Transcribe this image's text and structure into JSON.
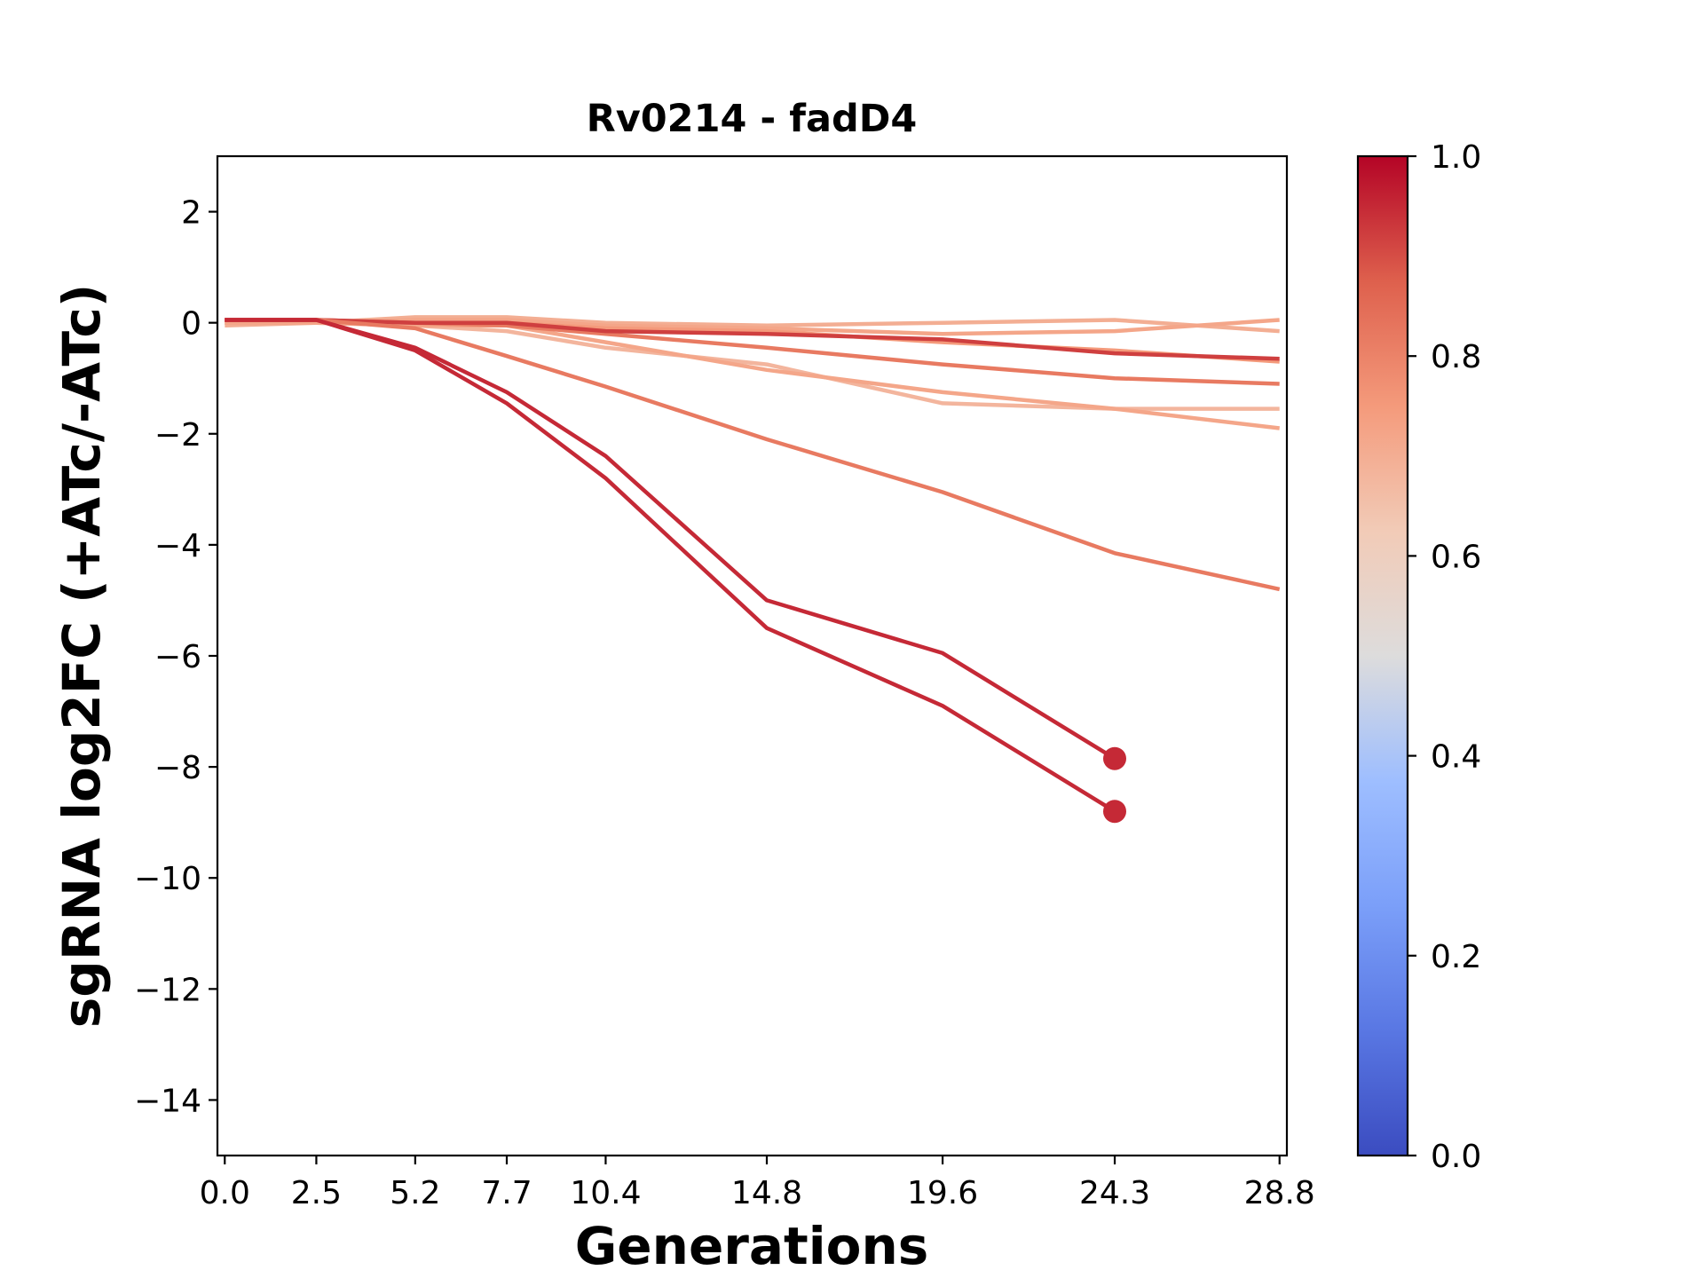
{
  "chart_data": {
    "type": "line",
    "title": "Rv0214 - fadD4",
    "xlabel": "Generations",
    "ylabel": "sgRNA log2FC (+ATc/-ATc)",
    "xlim": [
      -0.2,
      29.0
    ],
    "ylim": [
      -15,
      3
    ],
    "x_ticks": [
      0.0,
      2.5,
      5.2,
      7.7,
      10.4,
      14.8,
      19.6,
      24.3,
      28.8
    ],
    "x_tick_labels": [
      "0.0",
      "2.5",
      "5.2",
      "7.7",
      "10.4",
      "14.8",
      "19.6",
      "24.3",
      "28.8"
    ],
    "y_ticks": [
      2,
      0,
      -2,
      -4,
      -6,
      -8,
      -10,
      -12,
      -14
    ],
    "y_tick_labels": [
      "2",
      "0",
      "−2",
      "−4",
      "−6",
      "−8",
      "−10",
      "−12",
      "−14"
    ],
    "grid": false,
    "colorbar": {
      "colormap": "coolwarm",
      "range": [
        0.0,
        1.0
      ],
      "ticks": [
        0.0,
        0.2,
        0.4,
        0.6,
        0.8,
        1.0
      ],
      "tick_labels": [
        "0.0",
        "0.2",
        "0.4",
        "0.6",
        "0.8",
        "1.0"
      ]
    },
    "series": [
      {
        "color_value": 0.7,
        "x": [
          0.0,
          2.5,
          5.2,
          7.7,
          10.4,
          14.8,
          19.6,
          24.3,
          28.8
        ],
        "y": [
          -0.05,
          0.0,
          0.1,
          0.1,
          0.0,
          -0.05,
          0.0,
          0.05,
          -0.15
        ]
      },
      {
        "color_value": 0.72,
        "x": [
          0.0,
          2.5,
          5.2,
          7.7,
          10.4,
          14.8,
          19.6,
          24.3,
          28.8
        ],
        "y": [
          0.0,
          0.0,
          0.05,
          0.05,
          -0.05,
          -0.1,
          -0.2,
          -0.15,
          0.05
        ]
      },
      {
        "color_value": 0.75,
        "x": [
          0.0,
          2.5,
          5.2,
          7.7,
          10.4,
          14.8,
          19.6,
          24.3,
          28.8
        ],
        "y": [
          0.05,
          0.05,
          0.0,
          0.0,
          -0.1,
          -0.15,
          -0.35,
          -0.5,
          -0.7
        ]
      },
      {
        "color_value": 0.68,
        "x": [
          0.0,
          2.5,
          5.2,
          7.7,
          10.4,
          14.8,
          19.6,
          24.3,
          28.8
        ],
        "y": [
          0.0,
          0.0,
          -0.05,
          -0.15,
          -0.45,
          -0.75,
          -1.45,
          -1.55,
          -1.55
        ]
      },
      {
        "color_value": 0.72,
        "x": [
          0.0,
          2.5,
          5.2,
          7.7,
          10.4,
          14.8,
          19.6,
          24.3,
          28.8
        ],
        "y": [
          0.0,
          0.0,
          -0.05,
          -0.05,
          -0.35,
          -0.85,
          -1.25,
          -1.55,
          -1.9
        ]
      },
      {
        "color_value": 0.82,
        "x": [
          0.0,
          2.5,
          5.2,
          7.7,
          10.4,
          14.8,
          19.6,
          24.3,
          28.8
        ],
        "y": [
          0.05,
          0.05,
          0.0,
          -0.05,
          -0.2,
          -0.45,
          -0.75,
          -1.0,
          -1.1
        ]
      },
      {
        "color_value": 0.92,
        "x": [
          0.0,
          2.5,
          5.2,
          7.7,
          10.4,
          14.8,
          19.6,
          24.3,
          28.8
        ],
        "y": [
          0.05,
          0.05,
          0.0,
          0.0,
          -0.15,
          -0.2,
          -0.3,
          -0.55,
          -0.65
        ]
      },
      {
        "color_value": 0.82,
        "x": [
          0.0,
          2.5,
          5.2,
          7.7,
          10.4,
          14.8,
          19.6,
          24.3,
          28.8
        ],
        "y": [
          0.05,
          0.05,
          -0.1,
          -0.6,
          -1.15,
          -2.1,
          -3.05,
          -4.15,
          -4.8
        ]
      },
      {
        "color_value": 0.95,
        "x": [
          0.0,
          2.5,
          5.2,
          7.7,
          10.4,
          14.8,
          19.6,
          24.3
        ],
        "y": [
          0.05,
          0.05,
          -0.45,
          -1.25,
          -2.4,
          -5.0,
          -5.95,
          -7.85
        ],
        "end_marker": true
      },
      {
        "color_value": 0.95,
        "x": [
          0.0,
          2.5,
          5.2,
          7.7,
          10.4,
          14.8,
          19.6,
          24.3
        ],
        "y": [
          0.05,
          0.05,
          -0.5,
          -1.45,
          -2.8,
          -5.5,
          -6.9,
          -8.8
        ],
        "end_marker": true
      }
    ]
  }
}
